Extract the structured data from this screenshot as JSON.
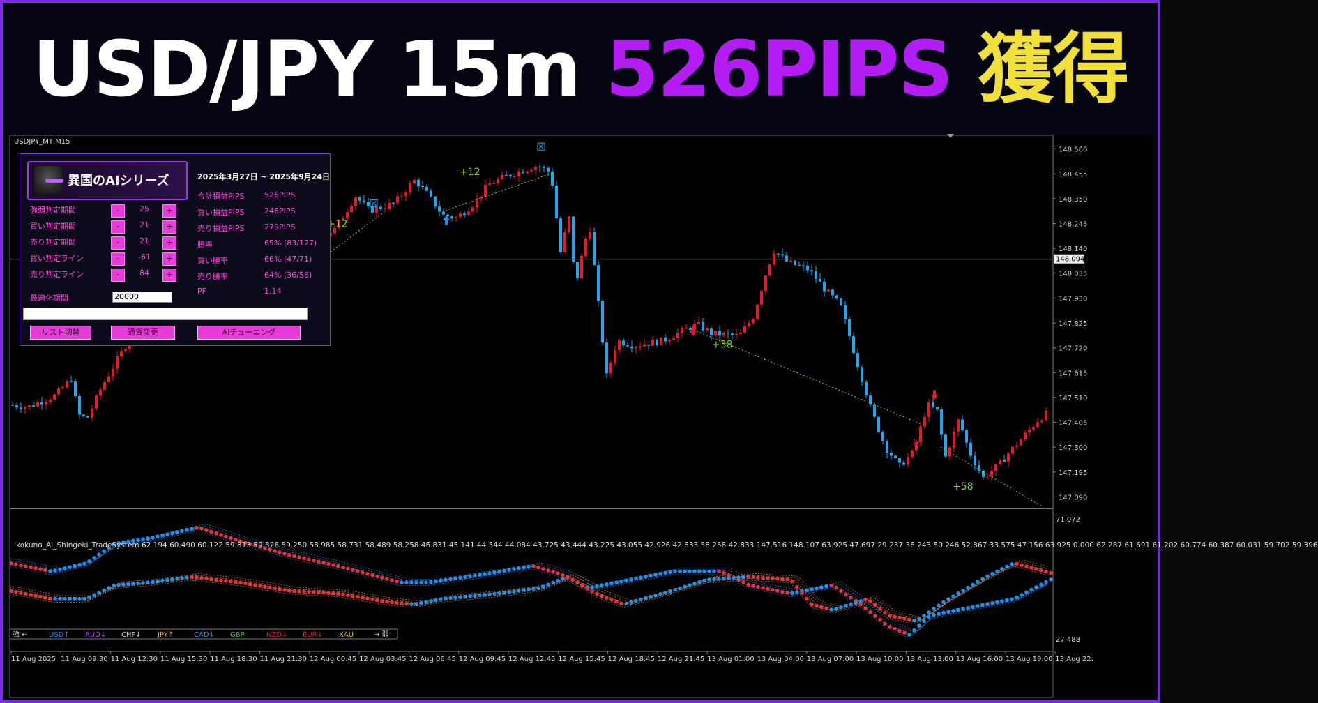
{
  "headline": {
    "pair": "USD/JPY 15m",
    "pips": "526PIPS",
    "gain": "獲得"
  },
  "chart": {
    "symbol": "USDJPY_MT,M15",
    "price_labels": [
      "148.560",
      "148.455",
      "148.350",
      "148.245",
      "148.140",
      "148.035",
      "147.930",
      "147.825",
      "147.720",
      "147.615",
      "147.510",
      "147.405",
      "147.300",
      "147.195",
      "147.090"
    ],
    "current_price": "148.094",
    "trade_labels": [
      "+12",
      "+12",
      "+38",
      "+58"
    ],
    "time_labels": [
      "11 Aug 2025",
      "11 Aug 09:30",
      "11 Aug 12:30",
      "11 Aug 15:30",
      "11 Aug 18:30",
      "11 Aug 21:30",
      "12 Aug 00:45",
      "12 Aug 03:45",
      "12 Aug 06:45",
      "12 Aug 09:45",
      "12 Aug 12:45",
      "12 Aug 15:45",
      "12 Aug 18:45",
      "12 Aug 21:45",
      "13 Aug 01:00",
      "13 Aug 04:00",
      "13 Aug 07:00",
      "13 Aug 10:00",
      "13 Aug 13:00",
      "13 Aug 16:00",
      "13 Aug 19:00",
      "13 Aug 22:"
    ],
    "colors": {
      "bull": "#e8182c",
      "bear": "#1ea8f0",
      "up_arrow": "#2b8cf0",
      "down_arrow": "#e8182c",
      "trend_dots": "#9ad020"
    }
  },
  "indicator": {
    "title": "Ikokuno_AI_Shingeki_TradeSystem 62.194 60.490 60.122 59.813 59.526 59.250 58.985 58.731 58.489 58.258 46.831 45.141 44.544 44.084 43.725 43.444 43.225 43.055 42.926 42.833 58.258 42.833 147.516 148.107 63.925 47.697 29.237 36.243 50.246 52.867 33.575 47.156 63.925 0.000 62.287 61.691 61.202 60.774 60.387 60.031 59.702 59.396",
    "scale_top": "71.072",
    "scale_bottom": "27.488",
    "strength_strong": "強 ←",
    "strength_weak": "→ 弱",
    "currencies": [
      {
        "label": "USD↑",
        "color": "#3a8cf0"
      },
      {
        "label": "AUD↓",
        "color": "#b04cf0"
      },
      {
        "label": "CHF↓",
        "color": "#cfcfcf"
      },
      {
        "label": "JPY↑",
        "color": "#f0962a"
      },
      {
        "label": "CAD↓",
        "color": "#3a8cf0"
      },
      {
        "label": "GBP",
        "color": "#4caf50"
      },
      {
        "label": "NZD↓",
        "color": "#e8182c"
      },
      {
        "label": "EUR↓",
        "color": "#e8182c"
      },
      {
        "label": "XAU",
        "color": "#f0c419"
      }
    ]
  },
  "panel": {
    "logo_text": "異国のAIシリーズ",
    "period": "2025年3月27日 ~ 2025年9月24日",
    "params": [
      {
        "label": "強弱判定期間",
        "minus": "-",
        "value": "25",
        "plus": "+"
      },
      {
        "label": "買い判定期間",
        "minus": "-",
        "value": "21",
        "plus": "+"
      },
      {
        "label": "売り判定期間",
        "minus": "-",
        "value": "21",
        "plus": "+"
      },
      {
        "label": "買い判定ライン",
        "minus": "-",
        "value": "-61",
        "plus": "+"
      },
      {
        "label": "売り判定ライン",
        "minus": "-",
        "value": "84",
        "plus": "+"
      }
    ],
    "optimize_label": "最適化期間",
    "optimize_value": "20000",
    "stats": [
      {
        "label": "合計損益PIPS",
        "value": "526PIPS"
      },
      {
        "label": "買い損益PIPS",
        "value": "246PIPS"
      },
      {
        "label": "売り損益PIPS",
        "value": "279PIPS"
      },
      {
        "label": "勝率",
        "value": "65% (83/127)"
      },
      {
        "label": "買い勝率",
        "value": "66% (47/71)"
      },
      {
        "label": "売り勝率",
        "value": "64% (36/56)"
      },
      {
        "label": "PF",
        "value": "1.14"
      }
    ],
    "buttons": {
      "list": "リスト切替",
      "currency": "通貨変更",
      "tuning": "AIチューニング"
    }
  }
}
